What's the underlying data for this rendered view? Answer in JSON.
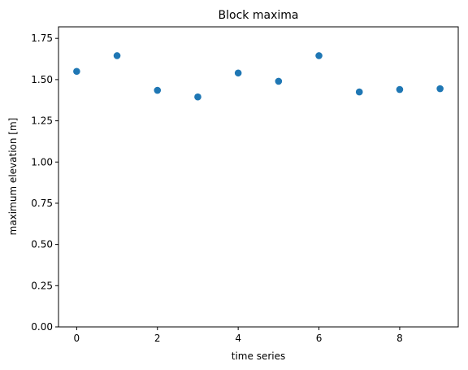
{
  "chart_data": {
    "type": "scatter",
    "title": "Block maxima",
    "xlabel": "time series",
    "ylabel": "maximum elevation [m]",
    "xlim": [
      -0.45,
      9.45
    ],
    "ylim": [
      0.0,
      1.82
    ],
    "xticks": [
      0,
      2,
      4,
      6,
      8
    ],
    "xtick_labels": [
      "0",
      "2",
      "4",
      "6",
      "8"
    ],
    "yticks": [
      0.0,
      0.25,
      0.5,
      0.75,
      1.0,
      1.25,
      1.5,
      1.75
    ],
    "ytick_labels": [
      "0.00",
      "0.25",
      "0.50",
      "0.75",
      "1.00",
      "1.25",
      "1.50",
      "1.75"
    ],
    "grid": false,
    "marker_color": "#1f77b4",
    "series": [
      {
        "x": [
          0,
          1,
          2,
          3,
          4,
          5,
          6,
          7,
          8,
          9
        ],
        "y": [
          1.55,
          1.645,
          1.435,
          1.395,
          1.54,
          1.49,
          1.645,
          1.425,
          1.44,
          1.445
        ]
      }
    ]
  }
}
